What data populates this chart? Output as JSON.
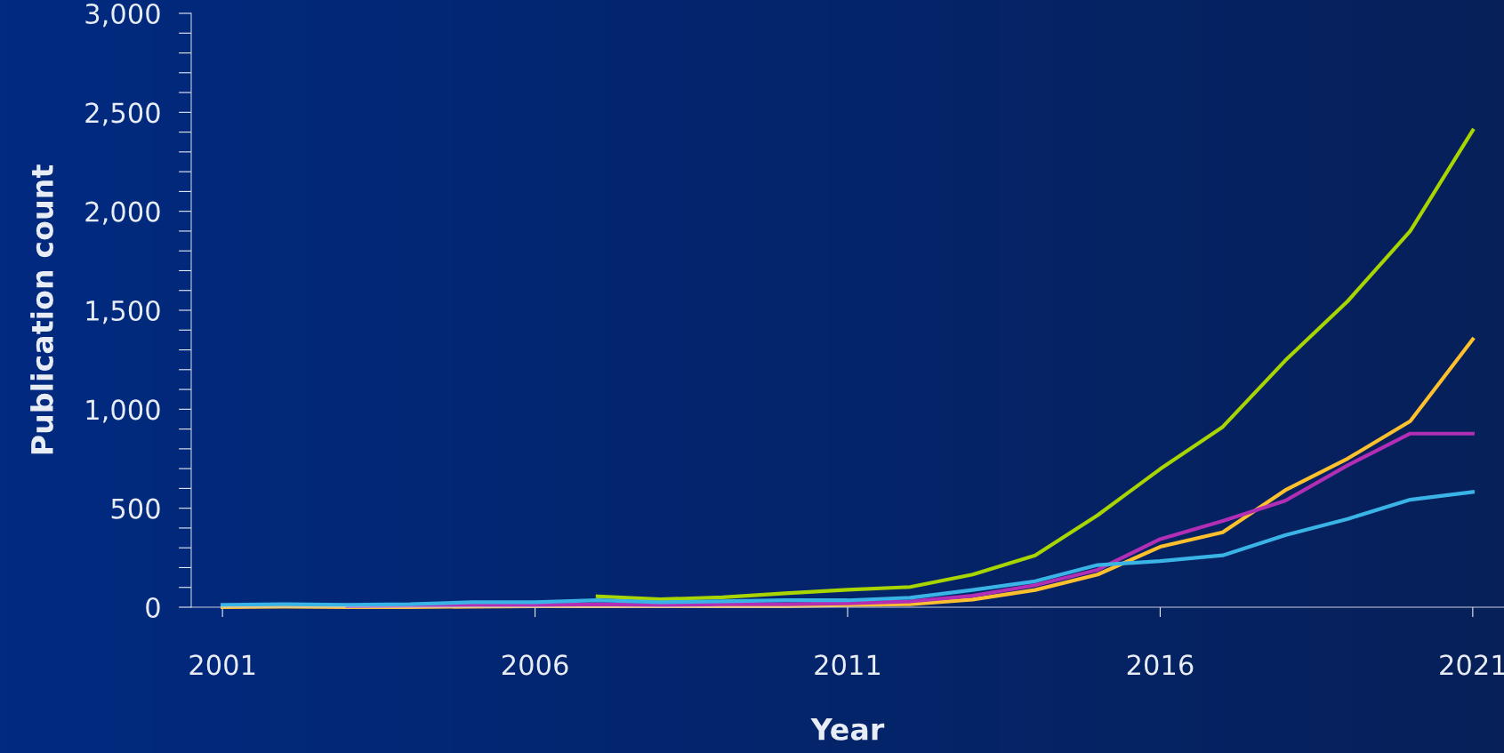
{
  "chart_data": {
    "type": "line",
    "xlabel": "Year",
    "ylabel": "Publication count",
    "x": [
      2001,
      2002,
      2003,
      2004,
      2005,
      2006,
      2007,
      2008,
      2009,
      2010,
      2011,
      2012,
      2013,
      2014,
      2015,
      2016,
      2017,
      2018,
      2019,
      2020,
      2021
    ],
    "series": [
      {
        "color": "#a8d400",
        "values": [
          null,
          null,
          null,
          null,
          null,
          null,
          55,
          40,
          50,
          70,
          88,
          102,
          165,
          262,
          465,
          698,
          911,
          1246,
          1546,
          1900,
          2409
        ]
      },
      {
        "color": "#ffc02e",
        "values": [
          0,
          3,
          0,
          0,
          3,
          5,
          5,
          5,
          5,
          5,
          10,
          15,
          39,
          87,
          165,
          305,
          378,
          591,
          751,
          940,
          1353
        ]
      },
      {
        "color": "#b22fb5",
        "values": [
          null,
          null,
          5,
          8,
          10,
          10,
          15,
          10,
          15,
          15,
          20,
          29,
          58,
          111,
          189,
          344,
          436,
          538,
          717,
          877,
          877
        ]
      },
      {
        "color": "#3ab4e6",
        "values": [
          12,
          15,
          12,
          15,
          25,
          25,
          35,
          25,
          30,
          35,
          35,
          48,
          87,
          131,
          213,
          233,
          262,
          364,
          446,
          543,
          582
        ]
      }
    ],
    "xlim": [
      2000.5,
      2021.5
    ],
    "xticks": [
      2001,
      2006,
      2011,
      2016,
      2021
    ],
    "ylim": [
      0,
      3000
    ],
    "yticks": [
      {
        "value": 0,
        "label": "0"
      },
      {
        "value": 100,
        "label": null
      },
      {
        "value": 200,
        "label": null
      },
      {
        "value": 300,
        "label": null
      },
      {
        "value": 400,
        "label": null
      },
      {
        "value": 500,
        "label": "500"
      },
      {
        "value": 600,
        "label": null
      },
      {
        "value": 700,
        "label": null
      },
      {
        "value": 800,
        "label": null
      },
      {
        "value": 900,
        "label": null
      },
      {
        "value": 1000,
        "label": "1,000"
      },
      {
        "value": 1100,
        "label": null
      },
      {
        "value": 1200,
        "label": null
      },
      {
        "value": 1300,
        "label": null
      },
      {
        "value": 1400,
        "label": null
      },
      {
        "value": 1500,
        "label": "1,500"
      },
      {
        "value": 1600,
        "label": null
      },
      {
        "value": 1700,
        "label": null
      },
      {
        "value": 1800,
        "label": null
      },
      {
        "value": 1900,
        "label": null
      },
      {
        "value": 2000,
        "label": "2,000"
      },
      {
        "value": 2100,
        "label": null
      },
      {
        "value": 2200,
        "label": null
      },
      {
        "value": 2300,
        "label": null
      },
      {
        "value": 2400,
        "label": null
      },
      {
        "value": 2500,
        "label": "2,500"
      },
      {
        "value": 2600,
        "label": null
      },
      {
        "value": 2700,
        "label": null
      },
      {
        "value": 2800,
        "label": null
      },
      {
        "value": 2900,
        "label": null
      },
      {
        "value": 3000,
        "label": "3,000"
      }
    ],
    "grid": false,
    "marker": "none",
    "line_style": "solid"
  }
}
